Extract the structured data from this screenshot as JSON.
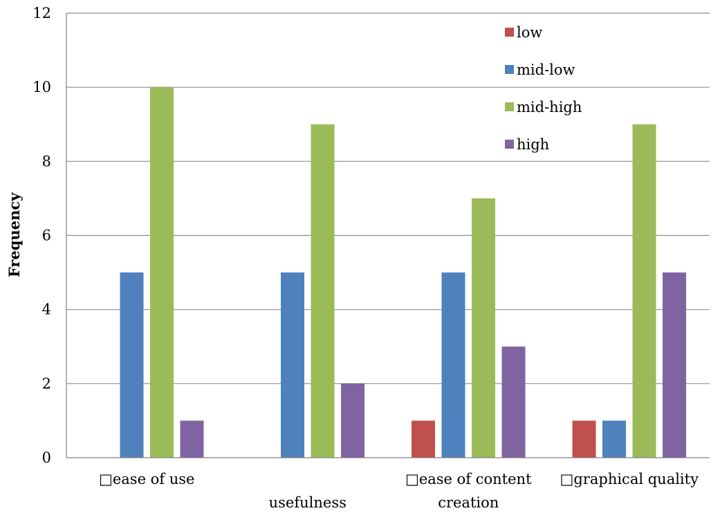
{
  "chart_data": {
    "type": "bar",
    "categories": [
      "□ease of use",
      "usefulness",
      "□ease of content creation",
      "□graphical quality"
    ],
    "series": [
      {
        "name": "low",
        "values": [
          0,
          0,
          1,
          1
        ],
        "color": "#c0504d"
      },
      {
        "name": "mid-low",
        "values": [
          5,
          5,
          5,
          1
        ],
        "color": "#4f81bd"
      },
      {
        "name": "mid-high",
        "values": [
          10,
          9,
          7,
          9
        ],
        "color": "#9bbb59"
      },
      {
        "name": "high",
        "values": [
          1,
          2,
          3,
          5
        ],
        "color": "#8064a2"
      }
    ],
    "title": "",
    "xlabel": "",
    "ylabel": "Frequency",
    "ylim": [
      0,
      12
    ],
    "yticks": [
      0,
      2,
      4,
      6,
      8,
      10,
      12
    ],
    "grid": true,
    "legend_position": "top-right",
    "category_label_rows": [
      [
        "□ease of use"
      ],
      [
        "",
        "usefulness"
      ],
      [
        "□ease of content",
        "creation"
      ],
      [
        "□graphical quality"
      ]
    ]
  }
}
